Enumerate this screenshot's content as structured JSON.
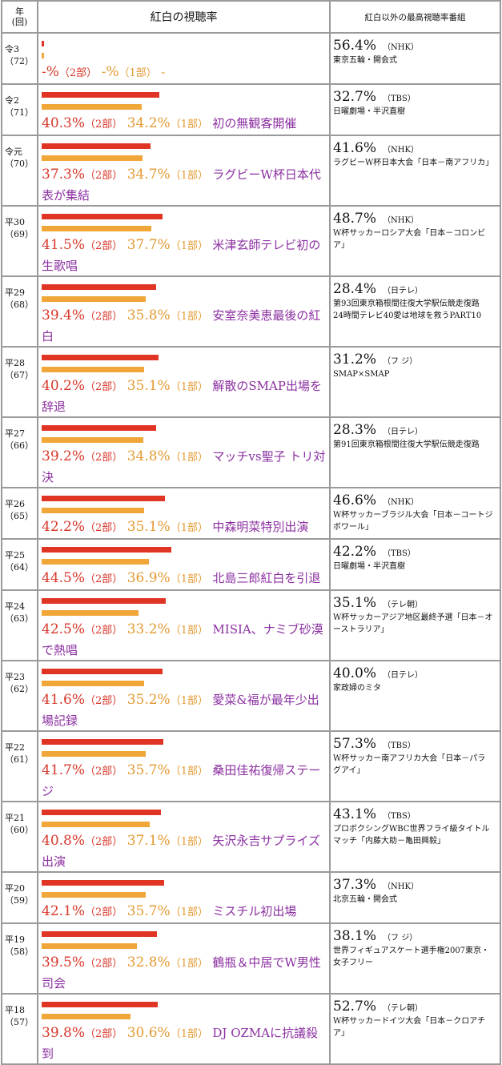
{
  "header": {
    "year": "年",
    "year_sub": "(回)",
    "main": "紅白の視聴率",
    "other": "紅白以外の最高視聴率番組"
  },
  "labels": {
    "part2": "（2部）",
    "part1": "（1部）"
  },
  "colors": {
    "part2": "#e03424",
    "part1": "#f0a638",
    "note": "#8b2fa0"
  },
  "chart_data": {
    "type": "bar",
    "series": [
      {
        "name": "（2部）"
      },
      {
        "name": "（1部）"
      }
    ],
    "rows": [
      {
        "era": "令3",
        "edition": "（72）",
        "part2": "-%",
        "part1": "-%",
        "v2": null,
        "v1": null,
        "note": "-",
        "rating": "56.4%",
        "network": "（NHK）",
        "program": "東京五輪・開会式",
        "h": 42
      },
      {
        "era": "令2",
        "edition": "（71）",
        "part2": "40.3%",
        "part1": "34.2%",
        "v2": 40.3,
        "v1": 34.2,
        "note": "初の無観客開催",
        "rating": "32.7%",
        "network": "（TBS）",
        "program": "日曜劇場・半沢直樹",
        "h": 60
      },
      {
        "era": "令元",
        "edition": "（70）",
        "part2": "37.3%",
        "part1": "34.7%",
        "v2": 37.3,
        "v1": 34.7,
        "note": "ラグビーW杯日本代表が集結",
        "rating": "41.6%",
        "network": "（NHK）",
        "program": "ラグビーW杯日本大会「日本－南アフリカ」",
        "h": 84
      },
      {
        "era": "平30",
        "edition": "（69）",
        "part2": "41.5%",
        "part1": "37.7%",
        "v2": 41.5,
        "v1": 37.7,
        "note": "米津玄師テレビ初の生歌唱",
        "rating": "48.7%",
        "network": "（NHK）",
        "program": "W杯サッカーロシア大会「日本－コロンビア」",
        "h": 84
      },
      {
        "era": "平29",
        "edition": "（68）",
        "part2": "39.4%",
        "part1": "35.8%",
        "v2": 39.4,
        "v1": 35.8,
        "note": "安室奈美恵最後の紅白",
        "rating": "28.4%",
        "network": "（日テレ）",
        "program": "第93回東京箱根間往復大学駅伝競走復路\n24時間テレビ40愛は地球を救うPART10",
        "h": 66
      },
      {
        "era": "平28",
        "edition": "（67）",
        "part2": "40.2%",
        "part1": "35.1%",
        "v2": 40.2,
        "v1": 35.1,
        "note": "解散のSMAP出場を辞退",
        "rating": "31.2%",
        "network": "（フ ジ）",
        "program": "SMAP×SMAP",
        "h": 84
      },
      {
        "era": "平27",
        "edition": "（66）",
        "part2": "39.2%",
        "part1": "34.8%",
        "v2": 39.2,
        "v1": 34.8,
        "note": "マッチvs聖子 トリ対決",
        "rating": "28.3%",
        "network": "（日テレ）",
        "program": "第91回東京箱根間往復大学駅伝競走復路",
        "h": 62
      },
      {
        "era": "平26",
        "edition": "（65）",
        "part2": "42.2%",
        "part1": "35.1%",
        "v2": 42.2,
        "v1": 35.1,
        "note": "中森明菜特別出演",
        "rating": "46.6%",
        "network": "（NHK）",
        "program": "W杯サッカーブラジル大会「日本－コートジボワール」",
        "h": 64
      },
      {
        "era": "平25",
        "edition": "（64）",
        "part2": "44.5%",
        "part1": "36.9%",
        "v2": 44.5,
        "v1": 36.9,
        "note": "北島三郎紅白を引退",
        "rating": "42.2%",
        "network": "（TBS）",
        "program": "日曜劇場・半沢直樹",
        "h": 62
      },
      {
        "era": "平24",
        "edition": "（63）",
        "part2": "42.5%",
        "part1": "33.2%",
        "v2": 42.5,
        "v1": 33.2,
        "note": "MISIA、ナミブ砂漠で熱唱",
        "rating": "35.1%",
        "network": "（テレ朝）",
        "program": "W杯サッカーアジア地区最終予選「日本－オーストラリア」",
        "h": 84
      },
      {
        "era": "平23",
        "edition": "（62）",
        "part2": "41.6%",
        "part1": "35.2%",
        "v2": 41.6,
        "v1": 35.2,
        "note": "愛菜&福が最年少出場記録",
        "rating": "40.0%",
        "network": "（日テレ）",
        "program": "家政婦のミタ",
        "h": 86
      },
      {
        "era": "平22",
        "edition": "（61）",
        "part2": "41.7%",
        "part1": "35.7%",
        "v2": 41.7,
        "v1": 35.7,
        "note": "桑田佳祐復帰ステージ",
        "rating": "57.3%",
        "network": "（TBS）",
        "program": "W杯サッカー南アフリカ大会「日本－パラグアイ」",
        "h": 64
      },
      {
        "era": "平21",
        "edition": "（60）",
        "part2": "40.8%",
        "part1": "37.1%",
        "v2": 40.8,
        "v1": 37.1,
        "note": "矢沢永吉サプライズ出演",
        "rating": "43.1%",
        "network": "（TBS）",
        "program": "プロボクシングWBC世界フライ級タイトルマッチ「内藤大助－亀田興毅」",
        "h": 84
      },
      {
        "era": "平20",
        "edition": "（59）",
        "part2": "42.1%",
        "part1": "35.7%",
        "v2": 42.1,
        "v1": 35.7,
        "note": "ミスチル初出場",
        "rating": "37.3%",
        "network": "（NHK）",
        "program": "北京五輪・開会式",
        "h": 62
      },
      {
        "era": "平19",
        "edition": "（58）",
        "part2": "39.5%",
        "part1": "32.8%",
        "v2": 39.5,
        "v1": 32.8,
        "note": "鶴瓶＆中居でW男性司会",
        "rating": "38.1%",
        "network": "（フ ジ）",
        "program": "世界フィギュアスケート選手権2007東京・女子フリー",
        "h": 84
      },
      {
        "era": "平18",
        "edition": "（57）",
        "part2": "39.8%",
        "part1": "30.6%",
        "v2": 39.8,
        "v1": 30.6,
        "note": "DJ OZMAに抗議殺到",
        "rating": "52.7%",
        "network": "（テレ朝）",
        "program": "W杯サッカードイツ大会「日本－クロアチア」",
        "h": 70
      }
    ]
  }
}
